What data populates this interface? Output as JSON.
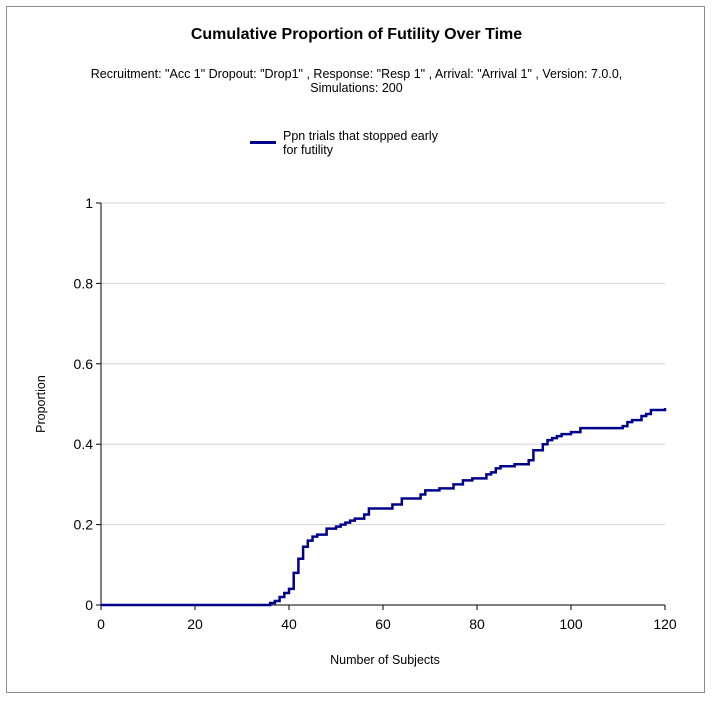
{
  "chart_data": {
    "type": "line",
    "step": true,
    "title": "Cumulative Proportion of Futility Over Time",
    "subtitle_lines": [
      "Recruitment: \"Acc 1\" Dropout: \"Drop1\" , Response: \"Resp 1\" , Arrival: \"Arrival 1\" , Version: 7.0.0,",
      "Simulations: 200"
    ],
    "xlabel": "Number of Subjects",
    "ylabel": "Proportion",
    "xlim": [
      0,
      120
    ],
    "ylim": [
      0,
      1
    ],
    "xticks": [
      0,
      20,
      40,
      60,
      80,
      100,
      120
    ],
    "yticks": [
      0,
      0.2,
      0.4,
      0.6,
      0.8,
      1
    ],
    "ytick_labels": [
      "0",
      "0.2",
      "0.4",
      "0.6",
      "0.8",
      "1"
    ],
    "grid": "horizontal",
    "legend_position": "top",
    "series": [
      {
        "name": "Ppn trials that stopped early for futility",
        "legend_lines": [
          "Ppn trials that stopped early",
          "for futility"
        ],
        "color": "#00008b",
        "x": [
          0,
          36,
          37,
          38,
          39,
          40,
          41,
          42,
          43,
          44,
          45,
          46,
          48,
          50,
          51,
          52,
          53,
          54,
          56,
          57,
          62,
          64,
          68,
          69,
          72,
          75,
          77,
          79,
          82,
          83,
          84,
          85,
          88,
          91,
          92,
          94,
          95,
          96,
          97,
          98,
          100,
          102,
          107,
          111,
          112,
          113,
          115,
          116,
          117,
          120
        ],
        "y": [
          0,
          0.005,
          0.01,
          0.02,
          0.03,
          0.04,
          0.08,
          0.115,
          0.145,
          0.16,
          0.17,
          0.175,
          0.19,
          0.195,
          0.2,
          0.205,
          0.21,
          0.215,
          0.225,
          0.24,
          0.25,
          0.265,
          0.275,
          0.285,
          0.29,
          0.3,
          0.31,
          0.315,
          0.325,
          0.33,
          0.34,
          0.345,
          0.35,
          0.36,
          0.385,
          0.4,
          0.41,
          0.415,
          0.42,
          0.425,
          0.43,
          0.44,
          0.44,
          0.445,
          0.455,
          0.46,
          0.47,
          0.475,
          0.485,
          0.49
        ]
      }
    ]
  }
}
